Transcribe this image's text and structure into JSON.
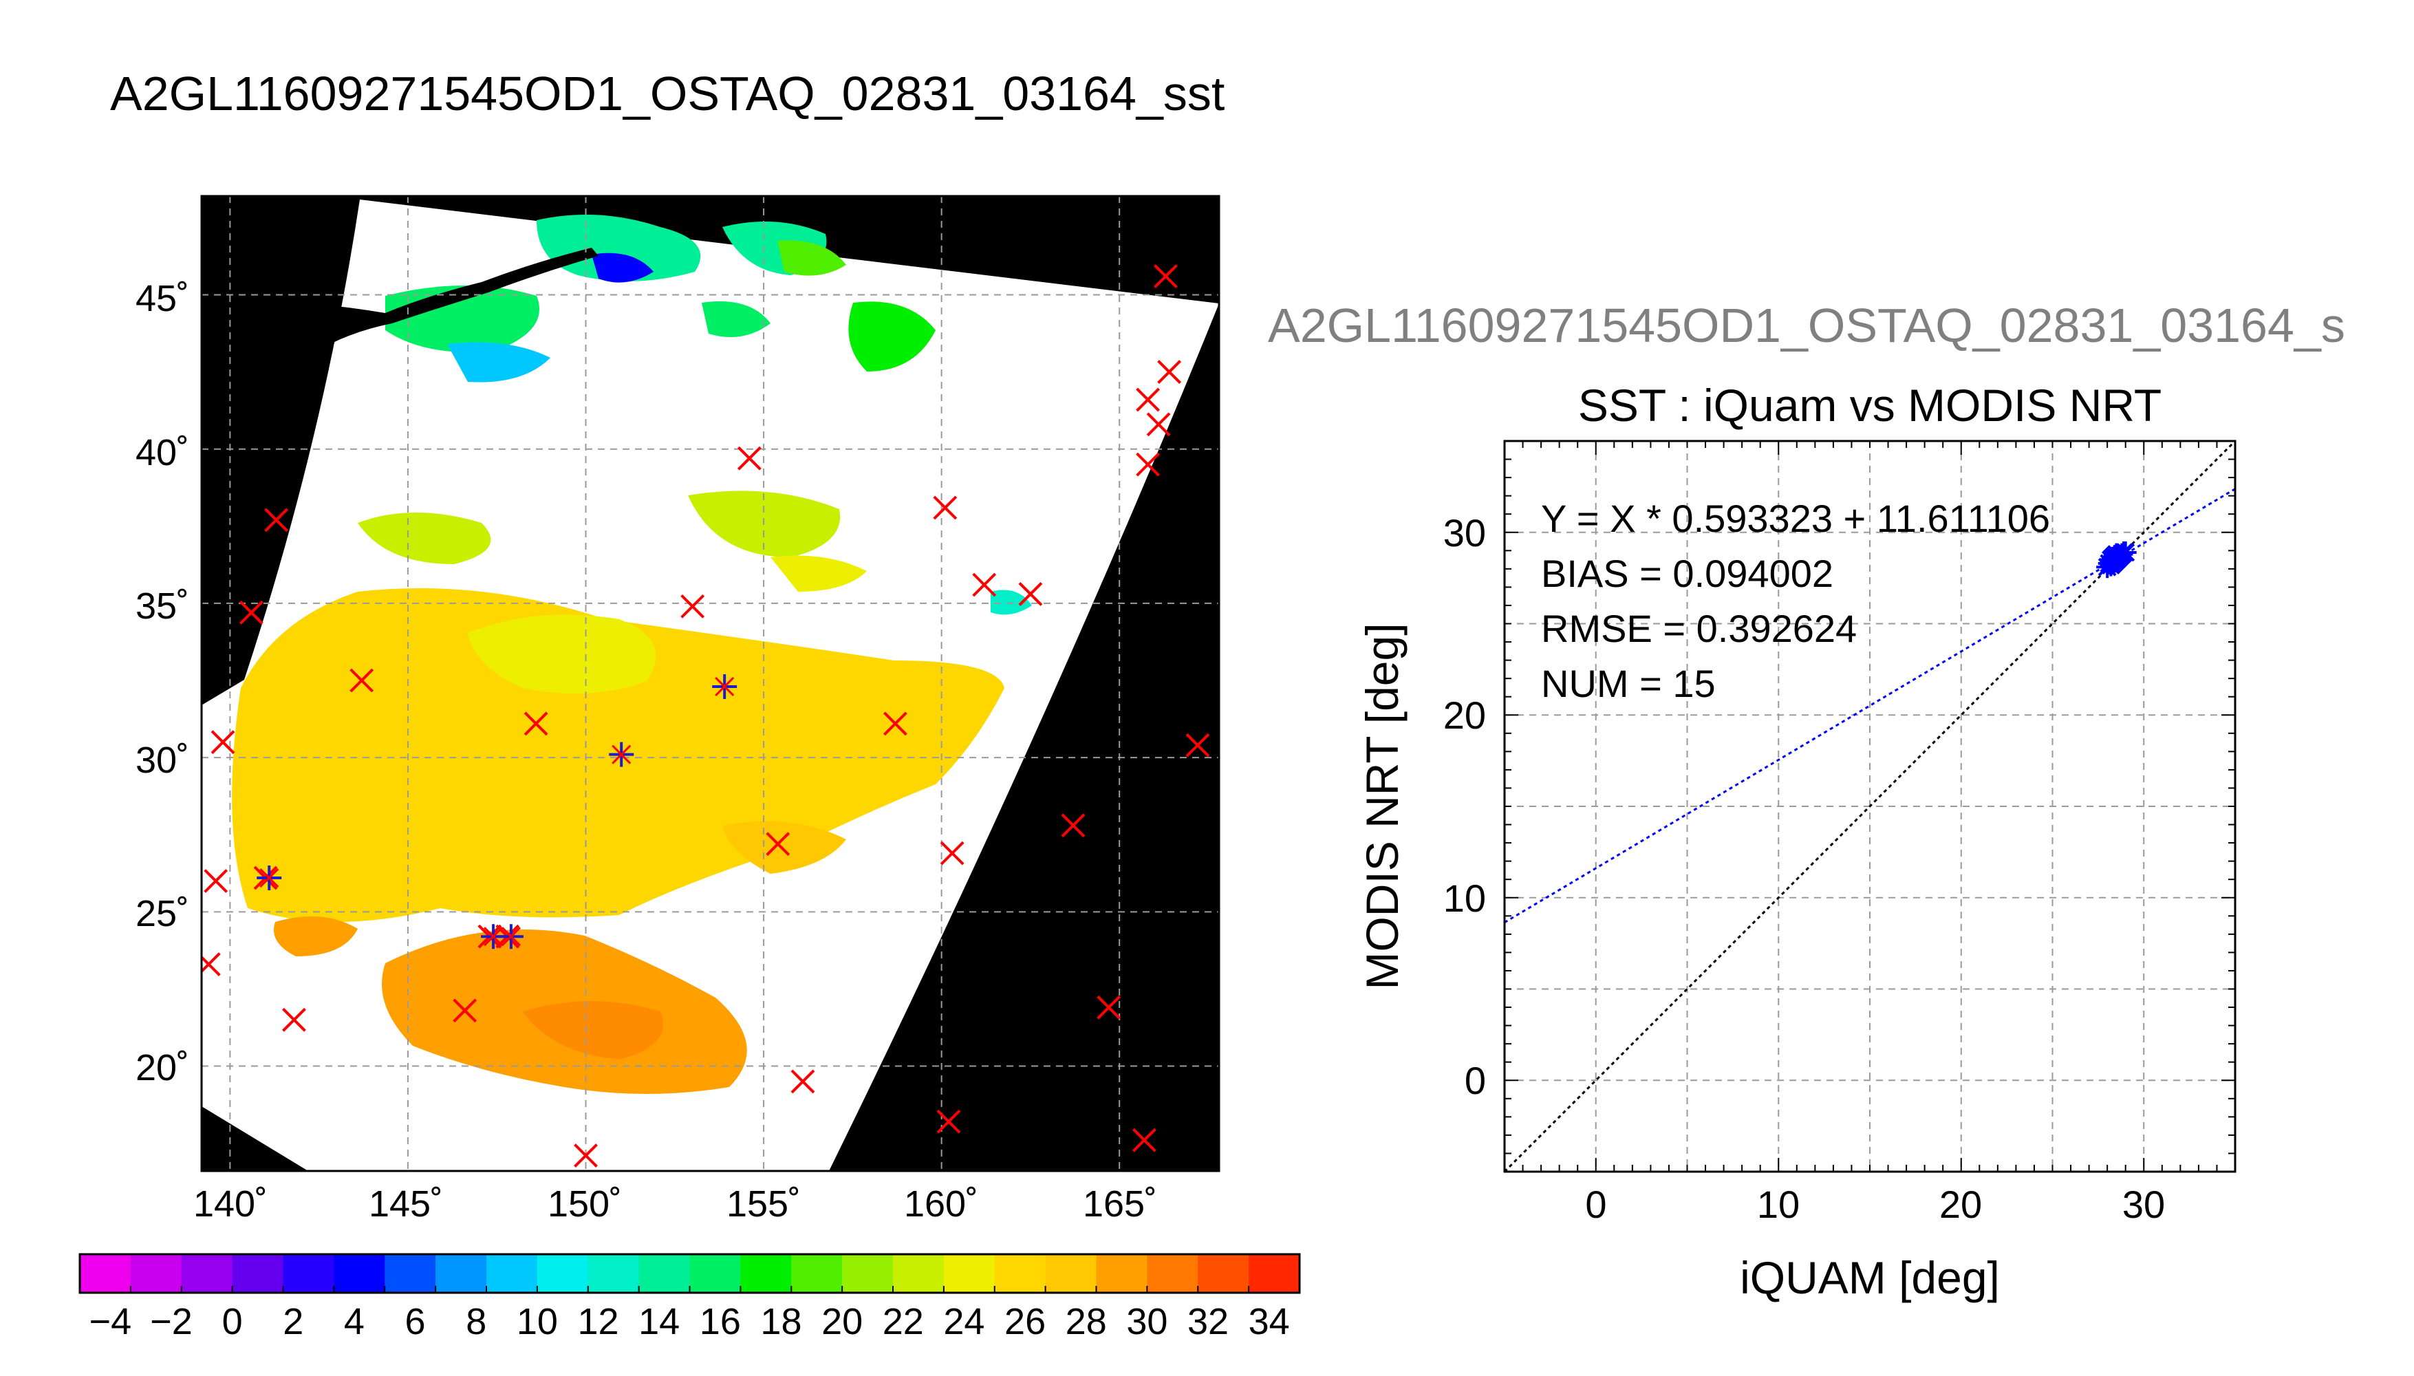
{
  "map": {
    "title": "A2GL11609271545OD1_OSTAQ_02831_03164_sst",
    "lon_ticks": [
      "140˚",
      "145˚",
      "150˚",
      "155˚",
      "160˚",
      "165˚"
    ],
    "lat_ticks": [
      "20˚",
      "25˚",
      "30˚",
      "35˚",
      "40˚",
      "45˚"
    ],
    "lon_range": [
      139.2,
      167.8
    ],
    "lat_range": [
      16.6,
      48.2
    ],
    "background_color": "#000000",
    "no_data_color": "#ffffff",
    "marker_color_buoy": "#ff0000",
    "marker_color_match": "#1b1bd0",
    "buoy_markers": [
      [
        166.3,
        45.6
      ],
      [
        166.4,
        42.5
      ],
      [
        165.8,
        41.6
      ],
      [
        166.1,
        40.8
      ],
      [
        165.8,
        39.5
      ],
      [
        154.6,
        39.7
      ],
      [
        141.3,
        37.7
      ],
      [
        160.1,
        38.1
      ],
      [
        161.2,
        35.6
      ],
      [
        162.5,
        35.3
      ],
      [
        140.6,
        34.7
      ],
      [
        153.0,
        34.9
      ],
      [
        143.7,
        32.5
      ],
      [
        148.6,
        31.1
      ],
      [
        158.7,
        31.1
      ],
      [
        139.8,
        30.5
      ],
      [
        167.2,
        30.4
      ],
      [
        155.4,
        27.2
      ],
      [
        163.7,
        27.8
      ],
      [
        160.3,
        26.9
      ],
      [
        139.6,
        26.0
      ],
      [
        141.0,
        26.1
      ],
      [
        147.3,
        24.2
      ],
      [
        147.8,
        24.2
      ],
      [
        139.4,
        23.3
      ],
      [
        141.8,
        21.5
      ],
      [
        146.6,
        21.8
      ],
      [
        164.7,
        21.9
      ],
      [
        156.1,
        19.5
      ],
      [
        160.2,
        18.2
      ],
      [
        165.7,
        17.6
      ],
      [
        150.0,
        17.1
      ]
    ],
    "match_markers": [
      [
        153.9,
        32.3
      ],
      [
        151.0,
        30.1
      ],
      [
        141.1,
        26.1
      ],
      [
        147.4,
        24.2
      ],
      [
        147.9,
        24.2
      ]
    ]
  },
  "colorbar": {
    "ticks": [
      "−4",
      "−2",
      "0",
      "2",
      "4",
      "6",
      "8",
      "10",
      "12",
      "14",
      "16",
      "18",
      "20",
      "22",
      "24",
      "26",
      "28",
      "30",
      "32",
      "34"
    ],
    "range": [
      -5,
      35
    ],
    "colors": [
      "#ee00ee",
      "#c800ee",
      "#9600ee",
      "#6400ee",
      "#2800ff",
      "#0000ff",
      "#0050ff",
      "#0096ff",
      "#00c8ff",
      "#00eeee",
      "#00eec8",
      "#00ee96",
      "#00ee64",
      "#00ee00",
      "#50ee00",
      "#96ee00",
      "#c8ee00",
      "#eeee00",
      "#ffd700",
      "#ffc800",
      "#ffa000",
      "#ff7800",
      "#ff5000",
      "#ff2800"
    ]
  },
  "scatter": {
    "header": "A2GL11609271545OD1_OSTAQ_02831_03164_s",
    "title": "SST : iQuam vs MODIS NRT",
    "xlabel": "iQUAM [deg]",
    "ylabel": "MODIS NRT [deg]",
    "stats": [
      "Y = X * 0.593323 + 11.611106",
      "BIAS = 0.094002",
      "RMSE = 0.392624",
      "NUM = 15"
    ]
  },
  "chart_data": {
    "type": "scatter",
    "title": "SST : iQuam vs MODIS NRT",
    "xlabel": "iQUAM [deg]",
    "ylabel": "MODIS NRT [deg]",
    "xlim": [
      -5,
      35
    ],
    "ylim": [
      -5,
      35
    ],
    "xticks": [
      "0",
      "10",
      "20",
      "30"
    ],
    "yticks": [
      "0",
      "10",
      "20",
      "30"
    ],
    "grid": true,
    "x": [
      28.0,
      28.1,
      28.2,
      28.2,
      28.3,
      28.3,
      28.4,
      28.4,
      28.5,
      28.5,
      28.6,
      28.7,
      28.8,
      28.9,
      29.0
    ],
    "y": [
      28.1,
      28.3,
      28.2,
      28.5,
      28.3,
      28.6,
      28.4,
      28.7,
      28.5,
      28.8,
      28.6,
      28.7,
      28.8,
      28.9,
      28.9
    ],
    "fit": {
      "slope": 0.593323,
      "intercept": 11.611106,
      "color": "#0000ff"
    },
    "identity_line": {
      "color": "#000000"
    },
    "marker_color": "#0000ff"
  }
}
